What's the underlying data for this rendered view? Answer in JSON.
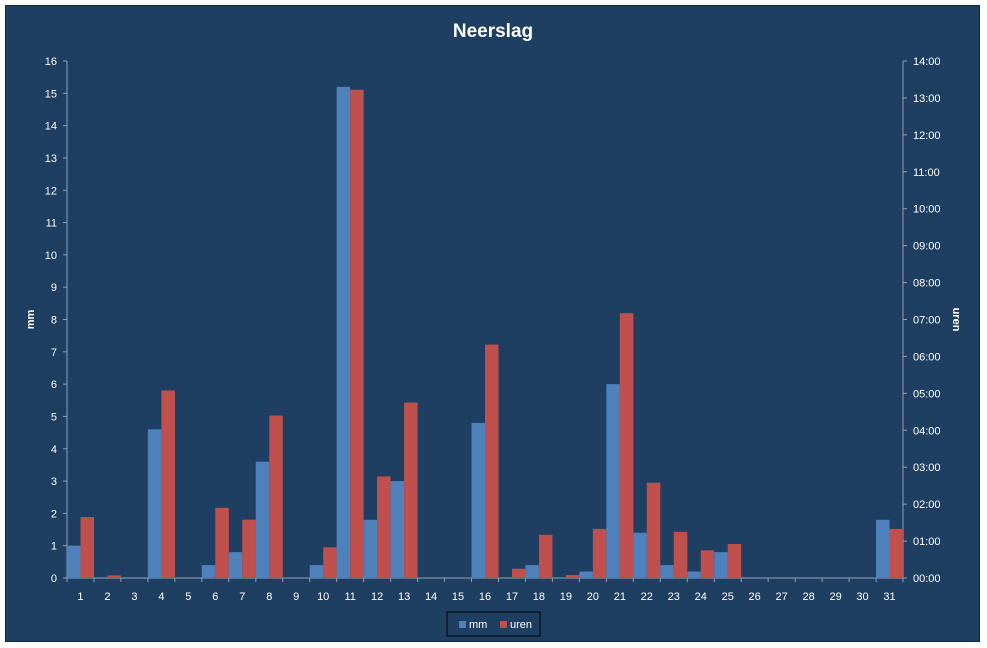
{
  "chart_data": {
    "type": "bar",
    "title": "Neerslag",
    "ylabel": "mm",
    "y2label": "uren",
    "categories": [
      "1",
      "2",
      "3",
      "4",
      "5",
      "6",
      "7",
      "8",
      "9",
      "10",
      "11",
      "12",
      "13",
      "14",
      "15",
      "16",
      "17",
      "18",
      "19",
      "20",
      "21",
      "22",
      "23",
      "24",
      "25",
      "26",
      "27",
      "28",
      "29",
      "30",
      "31"
    ],
    "ylim": [
      0,
      16
    ],
    "y2lim": [
      0,
      14
    ],
    "y_ticks": [
      "0",
      "1",
      "2",
      "3",
      "4",
      "5",
      "6",
      "7",
      "8",
      "9",
      "10",
      "11",
      "12",
      "13",
      "14",
      "15",
      "16"
    ],
    "y2_ticks": [
      "00:00",
      "01:00",
      "02:00",
      "03:00",
      "04:00",
      "05:00",
      "06:00",
      "07:00",
      "08:00",
      "09:00",
      "10:00",
      "11:00",
      "12:00",
      "13:00",
      "14:00"
    ],
    "series": [
      {
        "name": "mm",
        "axis": "left",
        "color": "#4f81bd",
        "values": [
          1.0,
          0,
          0,
          4.6,
          0,
          0.4,
          0.8,
          3.6,
          0,
          0.4,
          15.2,
          1.8,
          3.0,
          0,
          0,
          4.8,
          0,
          0.4,
          0,
          0.2,
          6.0,
          1.4,
          0.4,
          0.2,
          0.8,
          0,
          0,
          0,
          0,
          0,
          1.8
        ]
      },
      {
        "name": "uren",
        "axis": "right",
        "color": "#c0504d",
        "values_hours": [
          1.65,
          0.07,
          0,
          5.08,
          0,
          1.9,
          1.58,
          4.4,
          0,
          0.83,
          13.22,
          2.75,
          4.75,
          0,
          0,
          6.32,
          0.25,
          1.17,
          0.08,
          1.33,
          7.17,
          2.58,
          1.25,
          0.75,
          0.92,
          0,
          0,
          0,
          0,
          0,
          1.33
        ]
      }
    ],
    "grid": false,
    "legend": "bottom"
  }
}
